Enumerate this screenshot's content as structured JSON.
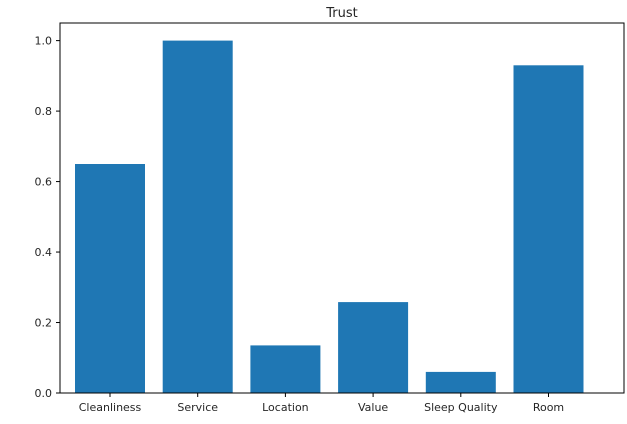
{
  "chart_data": {
    "type": "bar",
    "title": "Trust",
    "xlabel": "",
    "ylabel": "",
    "categories": [
      "Cleanliness",
      "Service",
      "Location",
      "Value",
      "Sleep Quality",
      "Room"
    ],
    "values": [
      0.65,
      1.0,
      0.135,
      0.258,
      0.06,
      0.93
    ],
    "ylim": [
      0,
      1.05
    ],
    "yticks": [
      "0.0",
      "0.2",
      "0.4",
      "0.6",
      "0.8",
      "1.0"
    ],
    "grid": false,
    "bar_color": "#1f77b4"
  }
}
